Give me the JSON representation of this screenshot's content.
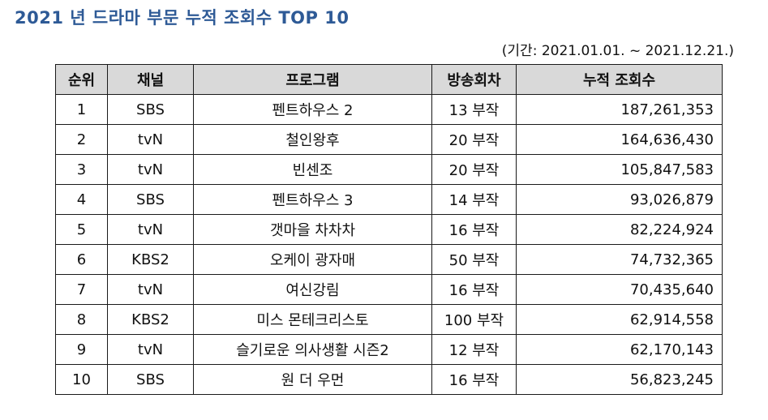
{
  "title": "2021 년 드라마 부문 누적 조회수 TOP 10",
  "period": "(기간: 2021.01.01. ~ 2021.12.21.)",
  "table": {
    "headers": [
      "순위",
      "채널",
      "프로그램",
      "방송회차",
      "누적 조회수"
    ],
    "rows": [
      [
        "1",
        "SBS",
        "펜트하우스 2",
        "13 부작",
        "187,261,353"
      ],
      [
        "2",
        "tvN",
        "철인왕후",
        "20 부작",
        "164,636,430"
      ],
      [
        "3",
        "tvN",
        "빈센조",
        "20 부작",
        "105,847,583"
      ],
      [
        "4",
        "SBS",
        "펜트하우스 3",
        "14 부작",
        "93,026,879"
      ],
      [
        "5",
        "tvN",
        "갯마을 차차차",
        "16 부작",
        "82,224,924"
      ],
      [
        "6",
        "KBS2",
        "오케이 광자매",
        "50 부작",
        "74,732,365"
      ],
      [
        "7",
        "tvN",
        "여신강림",
        "16 부작",
        "70,435,640"
      ],
      [
        "8",
        "KBS2",
        "미스 몬테크리스토",
        "100 부작",
        "62,914,558"
      ],
      [
        "9",
        "tvN",
        "슬기로운 의사생활 시즌2",
        "12 부작",
        "62,170,143"
      ],
      [
        "10",
        "SBS",
        "원 더 우먼",
        "16 부작",
        "56,823,245"
      ]
    ]
  },
  "colors": {
    "title": "#2e5a96",
    "header_bg": "#d9d9d9",
    "border": "#1a1a1a"
  }
}
